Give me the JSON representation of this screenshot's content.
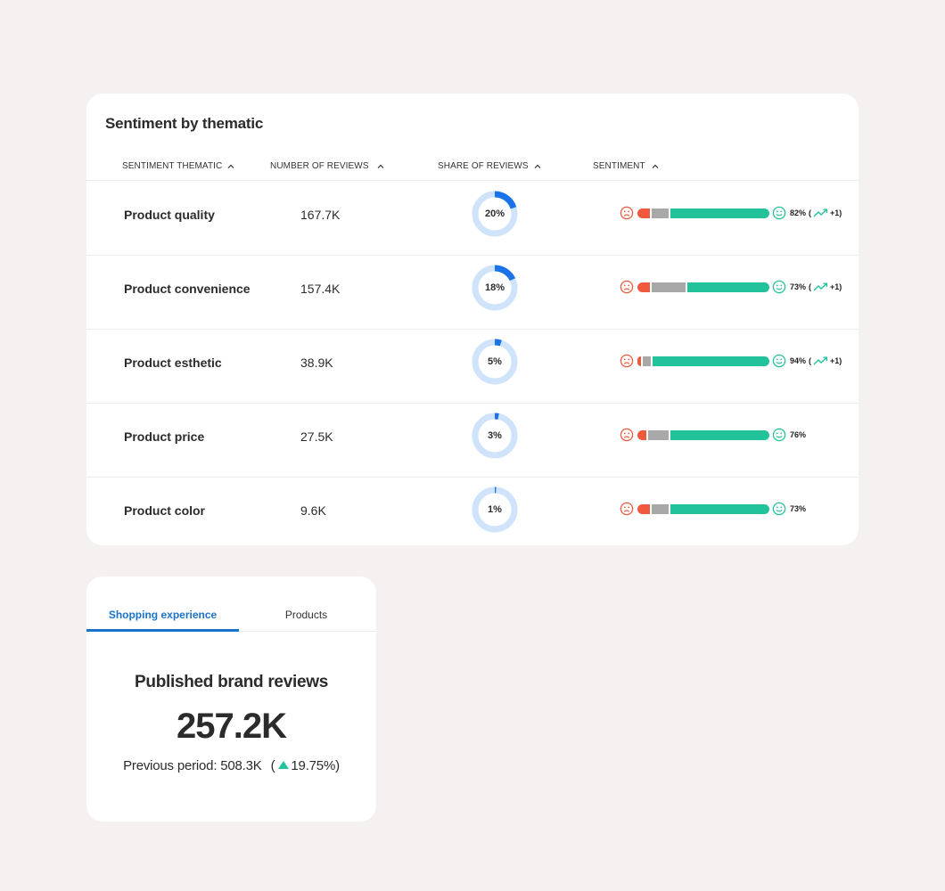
{
  "thematic": {
    "title": "Sentiment by thematic",
    "columns": {
      "thematic": "SENTIMENT THEMATIC",
      "reviews": "NUMBER OF REVIEWS",
      "share": "SHARE OF REVIEWS",
      "sentiment": "SENTIMENT"
    },
    "rows": [
      {
        "name": "Product quality",
        "count": "167.7K",
        "share_label": "20%",
        "share": 20,
        "neg": 10,
        "neu": 13,
        "pos": 77,
        "pct": "82%",
        "trend": "+1",
        "has_trend": true
      },
      {
        "name": "Product convenience",
        "count": "157.4K",
        "share_label": "18%",
        "share": 18,
        "neg": 10,
        "neu": 26,
        "pos": 64,
        "pct": "73%",
        "trend": "+1",
        "has_trend": true
      },
      {
        "name": "Product esthetic",
        "count": "38.9K",
        "share_label": "5%",
        "share": 5,
        "neg": 2,
        "neu": 6,
        "pos": 92,
        "pct": "94%",
        "trend": "+1",
        "has_trend": true
      },
      {
        "name": "Product price",
        "count": "27.5K",
        "share_label": "3%",
        "share": 3,
        "neg": 7,
        "neu": 16,
        "pos": 77,
        "pct": "76%",
        "trend": "",
        "has_trend": false
      },
      {
        "name": "Product color",
        "count": "9.6K",
        "share_label": "1%",
        "share": 1,
        "neg": 10,
        "neu": 13,
        "pos": 77,
        "pct": "73%",
        "trend": "",
        "has_trend": false
      }
    ],
    "colors": {
      "negative": "#f0593e",
      "neutral": "#a8a8a8",
      "positive": "#22c39a",
      "donut_fill": "#1a73e8",
      "donut_track": "#cfe3fb"
    },
    "icons": {
      "sort": "chevron-up-icon",
      "negative_face": "sad-face-icon",
      "positive_face": "happy-face-icon",
      "trend": "trending-up-icon"
    }
  },
  "reviews": {
    "tabs": [
      {
        "label": "Shopping experience",
        "active": true
      },
      {
        "label": "Products",
        "active": false
      }
    ],
    "title": "Published brand reviews",
    "value": "257.2K",
    "previous_label": "Previous period: 508.3K",
    "change_open": "(",
    "change_value": "19.75%)",
    "change_icon": "up-triangle-icon",
    "accent": "#1a73c8"
  }
}
